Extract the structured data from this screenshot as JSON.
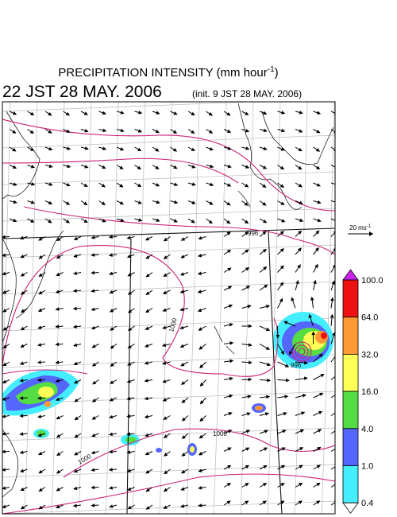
{
  "title": {
    "main": "PRECIPITATION INTENSITY (mm hour",
    "exponent": "-1",
    "close": ")"
  },
  "time": "22 JST 28 MAY. 2006",
  "init": "(init. 9 JST 28 MAY. 2006)",
  "reference_vector": {
    "label": "20 ms",
    "exponent": "-1"
  },
  "colorbar": {
    "labels": [
      "100.0",
      "64.0",
      "32.0",
      "16.0",
      "4.0",
      "1.0",
      "0.4"
    ],
    "colors": [
      "#cc22ee",
      "#ee1111",
      "#ff9933",
      "#ffff55",
      "#55dd44",
      "#5566ff",
      "#44eeff",
      "#ffffff"
    ]
  },
  "isobar_labels": [
    "996",
    "1000",
    "1000",
    "1000",
    "996"
  ]
}
